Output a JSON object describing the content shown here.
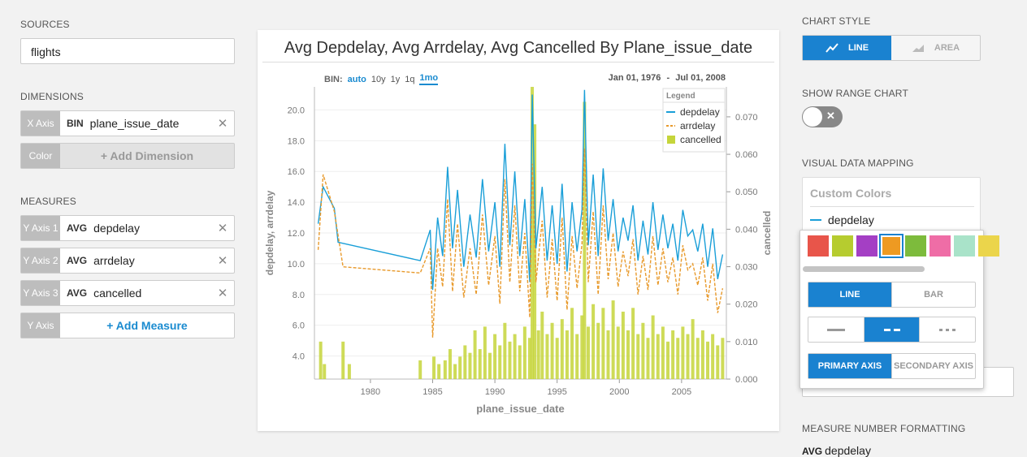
{
  "sources": {
    "label": "SOURCES",
    "value": "flights"
  },
  "dimensions": {
    "label": "DIMENSIONS",
    "x_axis": {
      "tag": "X Axis",
      "agg": "BIN",
      "field": "plane_issue_date"
    },
    "color": {
      "tag": "Color",
      "add_label": "+ Add Dimension"
    }
  },
  "measures": {
    "label": "MEASURES",
    "items": [
      {
        "tag": "Y Axis 1",
        "agg": "AVG",
        "field": "depdelay"
      },
      {
        "tag": "Y Axis 2",
        "agg": "AVG",
        "field": "arrdelay"
      },
      {
        "tag": "Y Axis 3",
        "agg": "AVG",
        "field": "cancelled"
      }
    ],
    "add": {
      "tag": "Y Axis",
      "add_label": "+ Add Measure"
    }
  },
  "chart": {
    "title": "Avg Depdelay, Avg Arrdelay, Avg Cancelled By Plane_issue_date",
    "bin_label": "BIN:",
    "bin_options": [
      "auto",
      "10y",
      "1y",
      "1q",
      "1mo"
    ],
    "bin_active": "auto",
    "bin_selected": "1mo",
    "date_start": "Jan 01, 1976",
    "date_sep": "-",
    "date_end": "Jul 01, 2008",
    "close_icon": "x-icon"
  },
  "chart_data": {
    "type": "line",
    "title": "Avg Depdelay, Avg Arrdelay, Avg Cancelled By Plane_issue_date",
    "xlabel": "plane_issue_date",
    "ylabel": "depdelay, arrdelay",
    "y2label": "cancelled",
    "xlim": [
      1975.5,
      2008.6
    ],
    "ylim": [
      2.5,
      21.5
    ],
    "y2lim": [
      0,
      0.078
    ],
    "x_ticks": [
      "1980",
      "1985",
      "1990",
      "1995",
      "2000",
      "2005"
    ],
    "y_ticks": [
      "4.0",
      "6.0",
      "8.0",
      "10.0",
      "12.0",
      "14.0",
      "16.0",
      "18.0",
      "20.0"
    ],
    "y2_ticks": [
      "0.000",
      "0.010",
      "0.020",
      "0.030",
      "0.040",
      "0.050",
      "0.060",
      "0.070"
    ],
    "legend": {
      "title": "Legend",
      "placement": "top-right"
    },
    "grid": true,
    "series": [
      {
        "name": "depdelay",
        "kind": "line",
        "color": "#1a9fd8",
        "points": [
          [
            1975.8,
            12.6
          ],
          [
            1976.2,
            15.0
          ],
          [
            1977.1,
            13.6
          ],
          [
            1977.4,
            11.4
          ],
          [
            1984.0,
            10.2
          ],
          [
            1984.8,
            12.2
          ],
          [
            1985.0,
            8.3
          ],
          [
            1985.4,
            13.0
          ],
          [
            1985.8,
            10.5
          ],
          [
            1986.2,
            16.3
          ],
          [
            1986.6,
            11.0
          ],
          [
            1987.0,
            14.8
          ],
          [
            1987.5,
            9.8
          ],
          [
            1988.0,
            13.2
          ],
          [
            1988.5,
            10.4
          ],
          [
            1989.0,
            15.5
          ],
          [
            1989.5,
            10.8
          ],
          [
            1990.0,
            14.0
          ],
          [
            1990.4,
            9.8
          ],
          [
            1990.8,
            17.8
          ],
          [
            1991.2,
            11.2
          ],
          [
            1991.6,
            16.0
          ],
          [
            1992.0,
            10.5
          ],
          [
            1992.4,
            14.2
          ],
          [
            1992.8,
            8.8
          ],
          [
            1993.0,
            21.0
          ],
          [
            1993.3,
            11.0
          ],
          [
            1993.8,
            15.0
          ],
          [
            1994.2,
            10.2
          ],
          [
            1994.6,
            13.8
          ],
          [
            1995.0,
            10.0
          ],
          [
            1995.4,
            15.2
          ],
          [
            1995.8,
            9.5
          ],
          [
            1996.2,
            14.0
          ],
          [
            1996.6,
            10.8
          ],
          [
            1997.0,
            13.5
          ],
          [
            1997.2,
            21.3
          ],
          [
            1997.5,
            11.2
          ],
          [
            1997.9,
            15.8
          ],
          [
            1998.3,
            10.5
          ],
          [
            1998.7,
            16.2
          ],
          [
            1999.1,
            11.5
          ],
          [
            1999.5,
            14.2
          ],
          [
            1999.9,
            10.8
          ],
          [
            2000.3,
            13.0
          ],
          [
            2000.7,
            11.5
          ],
          [
            2001.1,
            13.8
          ],
          [
            2001.5,
            10.2
          ],
          [
            2001.9,
            12.8
          ],
          [
            2002.3,
            10.6
          ],
          [
            2002.7,
            14.0
          ],
          [
            2003.1,
            10.9
          ],
          [
            2003.5,
            13.2
          ],
          [
            2003.9,
            11.0
          ],
          [
            2004.3,
            12.6
          ],
          [
            2004.7,
            10.2
          ],
          [
            2005.1,
            13.5
          ],
          [
            2005.5,
            11.8
          ],
          [
            2005.9,
            12.2
          ],
          [
            2006.3,
            10.8
          ],
          [
            2006.7,
            12.6
          ],
          [
            2007.1,
            9.8
          ],
          [
            2007.5,
            12.3
          ],
          [
            2007.9,
            9.0
          ],
          [
            2008.3,
            10.6
          ]
        ]
      },
      {
        "name": "arrdelay",
        "kind": "dashed-line",
        "color": "#e89a2c",
        "points": [
          [
            1975.8,
            10.9
          ],
          [
            1976.2,
            15.8
          ],
          [
            1977.1,
            13.4
          ],
          [
            1977.8,
            9.8
          ],
          [
            1984.0,
            9.4
          ],
          [
            1984.8,
            11.0
          ],
          [
            1985.0,
            5.2
          ],
          [
            1985.4,
            11.0
          ],
          [
            1985.8,
            8.5
          ],
          [
            1986.2,
            14.2
          ],
          [
            1986.6,
            8.2
          ],
          [
            1987.0,
            12.6
          ],
          [
            1987.5,
            7.8
          ],
          [
            1988.0,
            11.0
          ],
          [
            1988.5,
            8.0
          ],
          [
            1989.0,
            13.2
          ],
          [
            1989.5,
            8.6
          ],
          [
            1990.0,
            11.8
          ],
          [
            1990.4,
            7.4
          ],
          [
            1990.8,
            15.5
          ],
          [
            1991.2,
            8.8
          ],
          [
            1991.6,
            13.8
          ],
          [
            1992.0,
            8.2
          ],
          [
            1992.4,
            12.0
          ],
          [
            1992.8,
            6.5
          ],
          [
            1993.0,
            16.5
          ],
          [
            1993.3,
            8.8
          ],
          [
            1993.8,
            12.8
          ],
          [
            1994.2,
            7.8
          ],
          [
            1994.6,
            11.6
          ],
          [
            1995.0,
            7.6
          ],
          [
            1995.4,
            13.0
          ],
          [
            1995.8,
            7.0
          ],
          [
            1996.2,
            11.8
          ],
          [
            1996.6,
            8.4
          ],
          [
            1997.0,
            11.3
          ],
          [
            1997.2,
            17.5
          ],
          [
            1997.5,
            8.8
          ],
          [
            1997.9,
            13.4
          ],
          [
            1998.3,
            8.0
          ],
          [
            1998.7,
            13.8
          ],
          [
            1999.1,
            9.0
          ],
          [
            1999.5,
            12.0
          ],
          [
            1999.9,
            8.5
          ],
          [
            2000.3,
            10.8
          ],
          [
            2000.7,
            9.2
          ],
          [
            2001.1,
            11.6
          ],
          [
            2001.5,
            8.0
          ],
          [
            2001.9,
            10.5
          ],
          [
            2002.3,
            8.3
          ],
          [
            2002.7,
            11.8
          ],
          [
            2003.1,
            8.6
          ],
          [
            2003.5,
            11.0
          ],
          [
            2003.9,
            8.8
          ],
          [
            2004.3,
            10.4
          ],
          [
            2004.7,
            8.0
          ],
          [
            2005.1,
            11.2
          ],
          [
            2005.5,
            9.6
          ],
          [
            2005.9,
            10.0
          ],
          [
            2006.3,
            8.6
          ],
          [
            2006.7,
            10.4
          ],
          [
            2007.1,
            7.6
          ],
          [
            2007.5,
            10.0
          ],
          [
            2007.9,
            6.8
          ],
          [
            2008.3,
            8.4
          ]
        ]
      },
      {
        "name": "cancelled",
        "kind": "bar",
        "color": "#c5d53b",
        "axis": "secondary",
        "points": [
          [
            1976.0,
            0.01
          ],
          [
            1976.3,
            0.004
          ],
          [
            1977.8,
            0.01
          ],
          [
            1978.3,
            0.004
          ],
          [
            1984.0,
            0.005
          ],
          [
            1985.1,
            0.006
          ],
          [
            1985.5,
            0.004
          ],
          [
            1986.0,
            0.005
          ],
          [
            1986.4,
            0.008
          ],
          [
            1986.8,
            0.004
          ],
          [
            1987.2,
            0.006
          ],
          [
            1987.6,
            0.009
          ],
          [
            1988.0,
            0.007
          ],
          [
            1988.4,
            0.013
          ],
          [
            1988.8,
            0.008
          ],
          [
            1989.2,
            0.014
          ],
          [
            1989.6,
            0.007
          ],
          [
            1990.0,
            0.012
          ],
          [
            1990.4,
            0.009
          ],
          [
            1990.8,
            0.015
          ],
          [
            1991.2,
            0.01
          ],
          [
            1991.6,
            0.012
          ],
          [
            1992.0,
            0.009
          ],
          [
            1992.4,
            0.014
          ],
          [
            1992.8,
            0.011
          ],
          [
            1993.0,
            0.078
          ],
          [
            1993.2,
            0.068
          ],
          [
            1993.5,
            0.013
          ],
          [
            1993.8,
            0.018
          ],
          [
            1994.2,
            0.012
          ],
          [
            1994.6,
            0.015
          ],
          [
            1995.0,
            0.011
          ],
          [
            1995.4,
            0.016
          ],
          [
            1995.8,
            0.013
          ],
          [
            1996.2,
            0.019
          ],
          [
            1996.6,
            0.012
          ],
          [
            1997.0,
            0.017
          ],
          [
            1997.2,
            0.074
          ],
          [
            1997.5,
            0.014
          ],
          [
            1997.9,
            0.02
          ],
          [
            1998.3,
            0.015
          ],
          [
            1998.7,
            0.019
          ],
          [
            1999.1,
            0.013
          ],
          [
            1999.5,
            0.021
          ],
          [
            1999.9,
            0.014
          ],
          [
            2000.3,
            0.018
          ],
          [
            2000.7,
            0.013
          ],
          [
            2001.1,
            0.019
          ],
          [
            2001.5,
            0.012
          ],
          [
            2001.9,
            0.015
          ],
          [
            2002.3,
            0.011
          ],
          [
            2002.7,
            0.017
          ],
          [
            2003.1,
            0.012
          ],
          [
            2003.5,
            0.014
          ],
          [
            2003.9,
            0.01
          ],
          [
            2004.3,
            0.013
          ],
          [
            2004.7,
            0.011
          ],
          [
            2005.1,
            0.014
          ],
          [
            2005.5,
            0.012
          ],
          [
            2005.9,
            0.016
          ],
          [
            2006.3,
            0.011
          ],
          [
            2006.7,
            0.013
          ],
          [
            2007.1,
            0.01
          ],
          [
            2007.5,
            0.012
          ],
          [
            2007.9,
            0.009
          ],
          [
            2008.3,
            0.011
          ]
        ]
      }
    ]
  },
  "right_panel": {
    "chart_style_label": "CHART STYLE",
    "style_line": "LINE",
    "style_area": "AREA",
    "show_range_label": "SHOW RANGE CHART",
    "visual_mapping_label": "VISUAL DATA MAPPING",
    "custom_colors_label": "Custom Colors",
    "mapping_series": "depdelay",
    "palette": [
      "#e8554a",
      "#b6cc2f",
      "#a43fc4",
      "#ee9a22",
      "#7dbb3c",
      "#ef6da6",
      "#a9e3c9",
      "#ebd54b"
    ],
    "palette_selected_index": 3,
    "type_line": "LINE",
    "type_bar": "BAR",
    "axis_primary": "PRIMARY AXIS",
    "axis_secondary": "SECONDARY AXIS",
    "number_format_label": "MEASURE NUMBER FORMATTING",
    "number_format_agg": "AVG",
    "number_format_field": "depdelay"
  }
}
